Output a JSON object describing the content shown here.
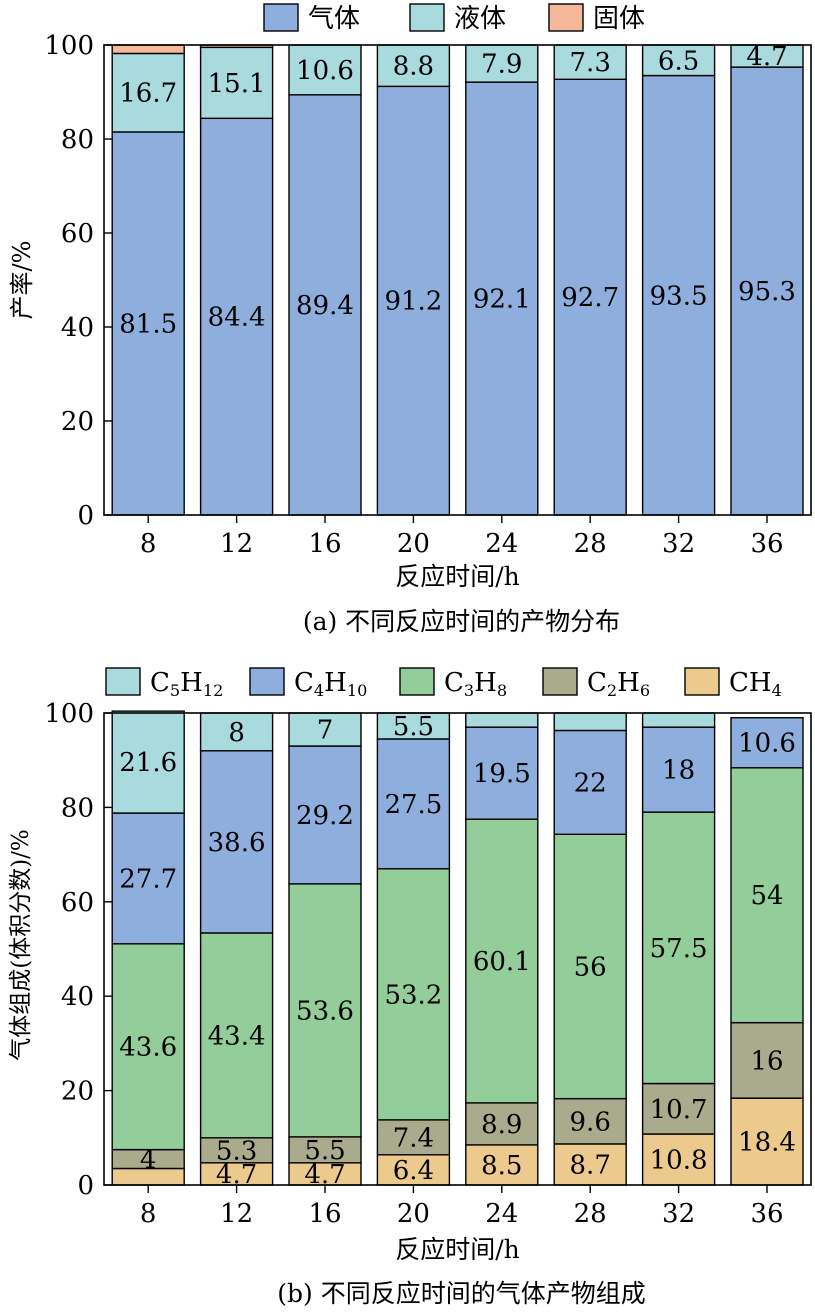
{
  "chart_data": [
    {
      "type": "bar",
      "stacked": true,
      "categories": [
        "8",
        "12",
        "16",
        "20",
        "24",
        "28",
        "32",
        "36"
      ],
      "series": [
        {
          "name": "气体",
          "color": "#8eafdd",
          "values": [
            81.5,
            84.4,
            89.4,
            91.2,
            92.1,
            92.7,
            93.5,
            95.3
          ],
          "labels": [
            "81.5",
            "84.4",
            "89.4",
            "91.2",
            "92.1",
            "92.7",
            "93.5",
            "95.3"
          ]
        },
        {
          "name": "液体",
          "color": "#a8dade",
          "values": [
            16.7,
            15.1,
            10.6,
            8.8,
            7.9,
            7.3,
            6.5,
            4.7
          ],
          "labels": [
            "16.7",
            "15.1",
            "10.6",
            "8.8",
            "7.9",
            "7.3",
            "6.5",
            "4.7"
          ]
        },
        {
          "name": "固体",
          "color": "#f5b899",
          "values": [
            1.8,
            0.5,
            0,
            0,
            0,
            0,
            0,
            0
          ],
          "labels": [
            "",
            "",
            "",
            "",
            "",
            "",
            "",
            ""
          ]
        }
      ],
      "title": "",
      "xlabel": "反应时间/h",
      "ylabel": "产率/%",
      "ylim": [
        0,
        100
      ],
      "yticks": [
        "0",
        "20",
        "40",
        "60",
        "80",
        "100"
      ],
      "caption": "(a) 不同反应时间的产物分布",
      "legend": "top-center"
    },
    {
      "type": "bar",
      "stacked": true,
      "categories": [
        "8",
        "12",
        "16",
        "20",
        "24",
        "28",
        "32",
        "36"
      ],
      "series": [
        {
          "name": "CH",
          "sub": "4",
          "color": "#ecca8e",
          "values": [
            3.5,
            4.7,
            4.7,
            6.4,
            8.5,
            8.7,
            10.8,
            18.4
          ],
          "labels": [
            "",
            "4.7",
            "4.7",
            "6.4",
            "8.5",
            "8.7",
            "10.8",
            "18.4"
          ]
        },
        {
          "name": "C",
          "sub": "2",
          "name2": "H",
          "sub2": "6",
          "color": "#aaaa8c",
          "values": [
            4,
            5.3,
            5.5,
            7.4,
            8.9,
            9.6,
            10.7,
            16
          ],
          "labels": [
            "4",
            "5.3",
            "5.5",
            "7.4",
            "8.9",
            "9.6",
            "10.7",
            "16"
          ]
        },
        {
          "name": "C",
          "sub": "3",
          "name2": "H",
          "sub2": "8",
          "color": "#92cd9a",
          "values": [
            43.6,
            43.4,
            53.6,
            53.2,
            60.1,
            56,
            57.5,
            54
          ],
          "labels": [
            "43.6",
            "43.4",
            "53.6",
            "53.2",
            "60.1",
            "56",
            "57.5",
            "54"
          ]
        },
        {
          "name": "C",
          "sub": "4",
          "name2": "H",
          "sub2": "10",
          "color": "#8eafdd",
          "values": [
            27.7,
            38.6,
            29.2,
            27.5,
            19.5,
            22,
            18,
            10.6
          ],
          "labels": [
            "27.7",
            "38.6",
            "29.2",
            "27.5",
            "19.5",
            "22",
            "18",
            "10.6"
          ]
        },
        {
          "name": "C",
          "sub": "5",
          "name2": "H",
          "sub2": "12",
          "color": "#a8dade",
          "values": [
            21.6,
            8,
            7,
            5.5,
            3,
            3.7,
            3,
            0
          ],
          "labels": [
            "21.6",
            "8",
            "7",
            "5.5",
            "",
            "",
            "",
            ""
          ]
        }
      ],
      "title": "",
      "xlabel": "反应时间/h",
      "ylabel": "气体组成(体积分数)/%",
      "ylim": [
        0,
        100
      ],
      "yticks": [
        "0",
        "20",
        "40",
        "60",
        "80",
        "100"
      ],
      "caption": "(b) 不同反应时间的气体产物组成",
      "legend": "top"
    }
  ]
}
